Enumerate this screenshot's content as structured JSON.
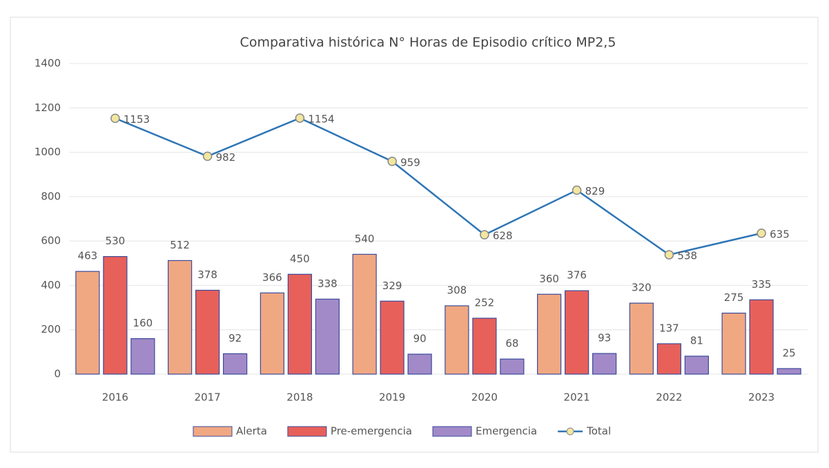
{
  "chart_data": {
    "type": "bar",
    "title": "Comparativa histórica N° Horas de Episodio crítico MP2,5",
    "categories": [
      "2016",
      "2017",
      "2018",
      "2019",
      "2020",
      "2021",
      "2022",
      "2023"
    ],
    "series": [
      {
        "name": "Alerta",
        "color": "#f0a882",
        "values": [
          463,
          512,
          366,
          540,
          308,
          360,
          320,
          275
        ]
      },
      {
        "name": "Pre-emergencia",
        "color": "#e8605a",
        "values": [
          530,
          378,
          450,
          329,
          252,
          376,
          137,
          335
        ]
      },
      {
        "name": "Emergencia",
        "color": "#a28ac8",
        "values": [
          160,
          92,
          338,
          90,
          68,
          93,
          81,
          25
        ]
      },
      {
        "name": "Total",
        "type": "line",
        "color": "#2e75b6",
        "values": [
          1153,
          982,
          1154,
          959,
          628,
          829,
          538,
          635
        ]
      }
    ],
    "ylim": [
      0,
      1400
    ],
    "yticks": [
      0,
      200,
      400,
      600,
      800,
      1000,
      1200,
      1400
    ],
    "grid": true,
    "legend": "bottom"
  }
}
